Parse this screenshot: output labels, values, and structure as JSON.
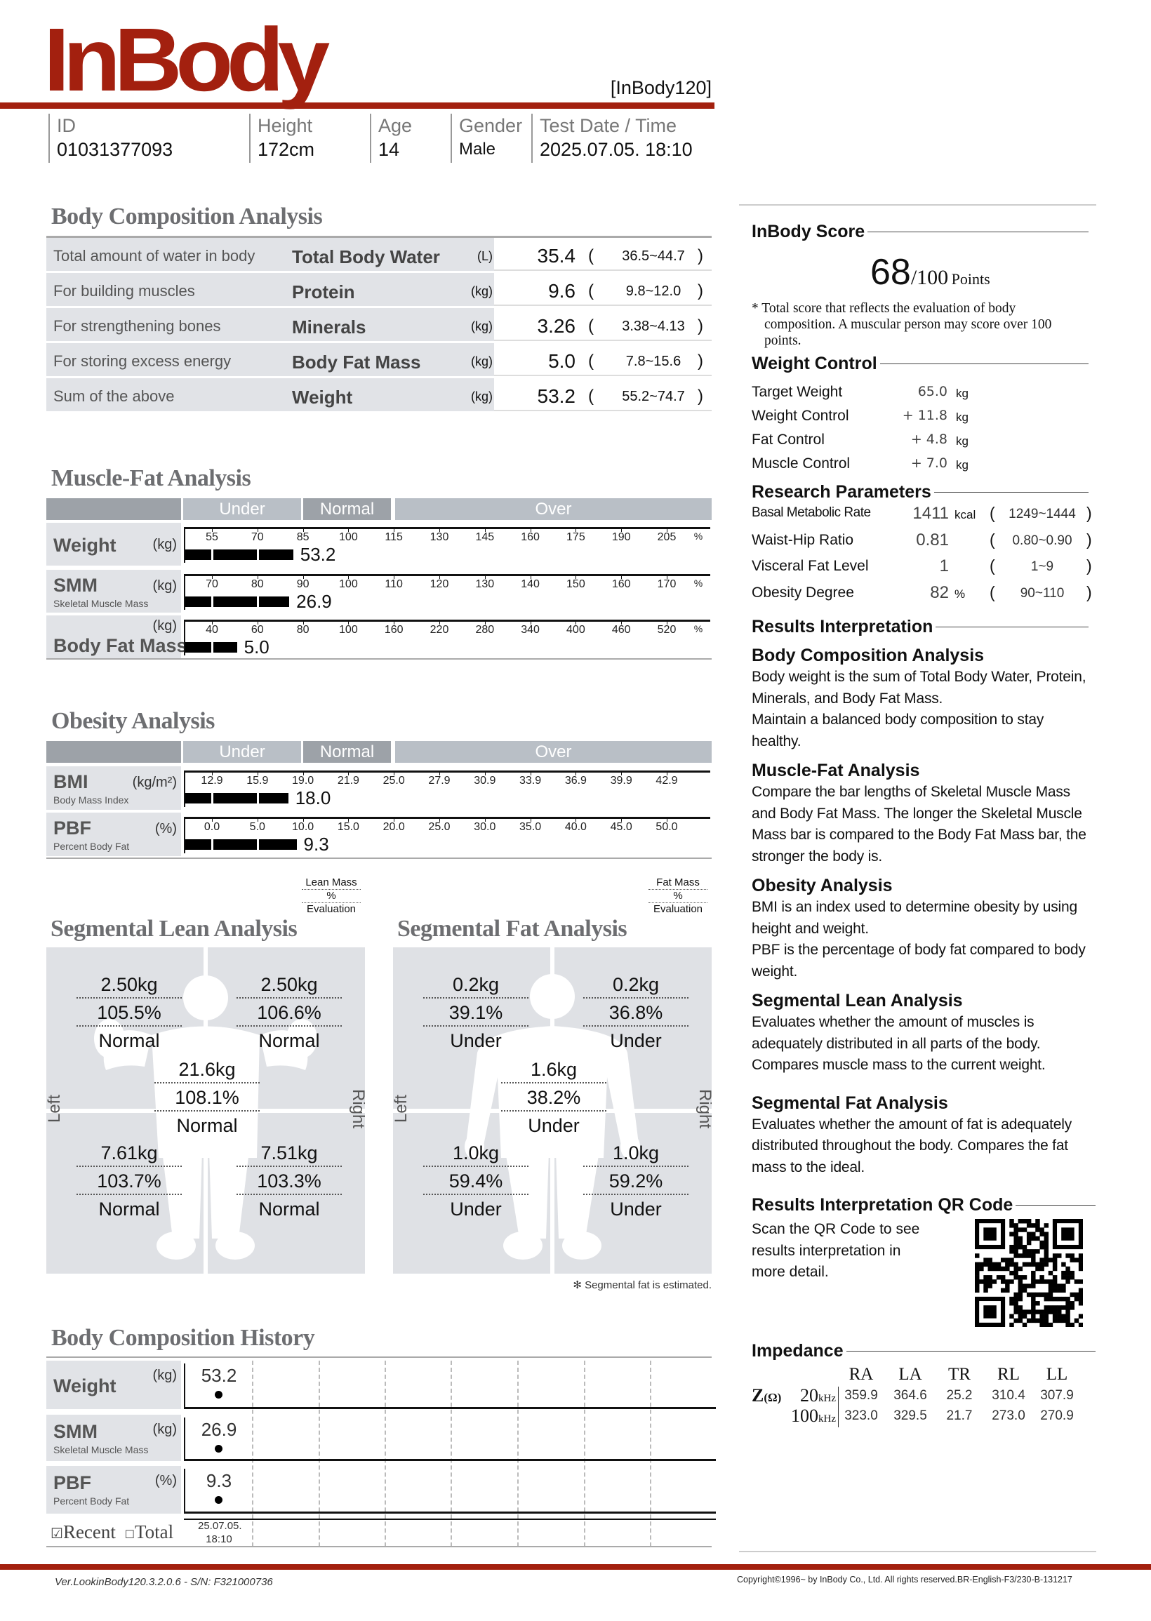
{
  "header": {
    "logo": "InBody",
    "model": "[InBody120]"
  },
  "info": [
    {
      "label": "ID",
      "value": "01031377093"
    },
    {
      "label": "Height",
      "value": "172cm"
    },
    {
      "label": "Age",
      "value": "14"
    },
    {
      "label": "Gender",
      "value": "Male"
    },
    {
      "label": "Test Date / Time",
      "value": "2025.07.05. 18:10"
    }
  ],
  "bca": {
    "title": "Body Composition Analysis",
    "rows": [
      {
        "desc": "Total amount of water in body",
        "name": "Total Body Water",
        "unit": "(L)",
        "value": "35.4",
        "range": "36.5~44.7"
      },
      {
        "desc": "For building muscles",
        "name": "Protein",
        "unit": "(kg)",
        "value": "9.6",
        "range": "9.8~12.0"
      },
      {
        "desc": "For strengthening bones",
        "name": "Minerals",
        "unit": "(kg)",
        "value": "3.26",
        "range": "3.38~4.13"
      },
      {
        "desc": "For storing excess energy",
        "name": "Body Fat Mass",
        "unit": "(kg)",
        "value": "5.0",
        "range": "7.8~15.6"
      },
      {
        "desc": "Sum of the above",
        "name": "Weight",
        "unit": "(kg)",
        "value": "53.2",
        "range": "55.2~74.7"
      }
    ],
    "open": "(",
    "close": ")"
  },
  "bands": {
    "under": "Under",
    "normal": "Normal",
    "over": "Over"
  },
  "mfa": {
    "title": "Muscle-Fat Analysis",
    "rows": [
      {
        "name": "Weight",
        "sub": "",
        "unit": "(kg)",
        "value": "53.2",
        "level_percent": 81.8,
        "ticks": [
          55,
          70,
          85,
          100,
          115,
          130,
          145,
          160,
          175,
          190,
          205
        ],
        "pct": "%"
      },
      {
        "name": "SMM",
        "sub": "Skeletal Muscle Mass",
        "unit": "(kg)",
        "value": "26.9",
        "level_percent": 87,
        "ticks": [
          70,
          80,
          90,
          100,
          110,
          120,
          130,
          140,
          150,
          160,
          170
        ],
        "pct": "%"
      },
      {
        "name": "Body Fat Mass",
        "sub": "",
        "unit": "(kg)",
        "value": "5.0",
        "level_percent": 51,
        "ticks": [
          40,
          60,
          80,
          100,
          160,
          220,
          280,
          340,
          400,
          460,
          520
        ],
        "pct": "%"
      }
    ]
  },
  "oa": {
    "title": "Obesity Analysis",
    "rows": [
      {
        "name": "BMI",
        "sub": "Body Mass Index",
        "unit": "(kg/m²)",
        "value": "18.0",
        "level": 18.0,
        "ticks": [
          "12.9",
          "15.9",
          "19.0",
          "21.9",
          "25.0",
          "27.9",
          "30.9",
          "33.9",
          "36.9",
          "39.9",
          "42.9"
        ],
        "pct": ""
      },
      {
        "name": "PBF",
        "sub": "Percent Body Fat",
        "unit": "(%)",
        "value": "9.3",
        "level": 9.3,
        "ticks": [
          "0.0",
          "5.0",
          "10.0",
          "15.0",
          "20.0",
          "25.0",
          "30.0",
          "35.0",
          "40.0",
          "45.0",
          "50.0"
        ],
        "pct": ""
      }
    ]
  },
  "seg_lean": {
    "title": "Segmental Lean Analysis",
    "legend": [
      "Lean Mass",
      "%",
      "Evaluation"
    ],
    "left": "Left",
    "right": "Right",
    "la": [
      "2.50kg",
      "105.5%",
      "Normal"
    ],
    "ra": [
      "2.50kg",
      "106.6%",
      "Normal"
    ],
    "tr": [
      "21.6kg",
      "108.1%",
      "Normal"
    ],
    "ll": [
      "7.61kg",
      "103.7%",
      "Normal"
    ],
    "rl": [
      "7.51kg",
      "103.3%",
      "Normal"
    ]
  },
  "seg_fat": {
    "title": "Segmental Fat Analysis",
    "legend": [
      "Fat Mass",
      "%",
      "Evaluation"
    ],
    "left": "Left",
    "right": "Right",
    "la": [
      "0.2kg",
      "39.1%",
      "Under"
    ],
    "ra": [
      "0.2kg",
      "36.8%",
      "Under"
    ],
    "tr": [
      "1.6kg",
      "38.2%",
      "Under"
    ],
    "ll": [
      "1.0kg",
      "59.4%",
      "Under"
    ],
    "rl": [
      "1.0kg",
      "59.2%",
      "Under"
    ],
    "note": "✻ Segmental fat is estimated."
  },
  "history": {
    "title": "Body Composition History",
    "rows": [
      {
        "name": "Weight",
        "sub": "",
        "unit": "(kg)",
        "value": "53.2"
      },
      {
        "name": "SMM",
        "sub": "Skeletal Muscle Mass",
        "unit": "(kg)",
        "value": "26.9"
      },
      {
        "name": "PBF",
        "sub": "Percent Body Fat",
        "unit": "(%)",
        "value": "9.3"
      }
    ],
    "recent": "Recent",
    "total": "Total",
    "recent_checked": true,
    "total_checked": false,
    "date": "25.07.05.",
    "time": "18:10"
  },
  "score": {
    "title": "InBody Score",
    "value": "68",
    "max": "/100",
    "unit": "Points",
    "note": "* Total score that reflects the evaluation of body composition. A muscular person may score over 100 points."
  },
  "weight_control": {
    "title": "Weight Control",
    "rows": [
      {
        "label": "Target Weight",
        "value": "65.0",
        "unit": "kg"
      },
      {
        "label": "Weight Control",
        "value": "+ 11.8",
        "unit": "kg"
      },
      {
        "label": "Fat Control",
        "value": "+ 4.8",
        "unit": "kg"
      },
      {
        "label": "Muscle Control",
        "value": "+ 7.0",
        "unit": "kg"
      }
    ]
  },
  "research": {
    "title": "Research Parameters",
    "rows": [
      {
        "label": "Basal Metabolic Rate",
        "value": "1411",
        "unit": "kcal",
        "range": "1249~1444"
      },
      {
        "label": "Waist-Hip Ratio",
        "value": "0.81",
        "unit": "",
        "range": "0.80~0.90"
      },
      {
        "label": "Visceral Fat Level",
        "value": "1",
        "unit": "",
        "range": "1~9"
      },
      {
        "label": "Obesity Degree",
        "value": "82",
        "unit": "%",
        "range": "90~110"
      }
    ]
  },
  "interp": {
    "title": "Results Interpretation",
    "sections": [
      {
        "h": "Body Composition Analysis",
        "p": [
          "Body weight is the sum of Total Body Water, Protein, Minerals, and Body Fat Mass.",
          "Maintain a balanced body composition to stay healthy."
        ]
      },
      {
        "h": "Muscle-Fat Analysis",
        "p": [
          "Compare the bar lengths of Skeletal Muscle Mass and Body Fat Mass. The longer the Skeletal Muscle Mass bar is compared to the Body Fat Mass bar, the stronger the body is."
        ]
      },
      {
        "h": "Obesity Analysis",
        "p": [
          "BMI is an index used to determine obesity by using height and weight.",
          "PBF is the percentage of body fat compared to body weight."
        ]
      },
      {
        "h": "Segmental Lean Analysis",
        "p": [
          "Evaluates whether the amount of muscles is adequately distributed in all parts of the body. Compares muscle mass to the current weight."
        ]
      },
      {
        "h": "Segmental Fat Analysis",
        "p": [
          "Evaluates whether the amount of fat is adequately distributed throughout the body. Compares the fat mass to the ideal."
        ]
      }
    ]
  },
  "qr": {
    "title": "Results Interpretation QR Code",
    "text": "Scan the QR Code to see results interpretation in more detail."
  },
  "impedance": {
    "title": "Impedance",
    "z": "Z",
    "ohm": "(Ω)",
    "cols": [
      "RA",
      "LA",
      "TR",
      "RL",
      "LL"
    ],
    "rows": [
      {
        "freq": "20",
        "unit": "kHz",
        "values": [
          "359.9",
          "364.6",
          "25.2",
          "310.4",
          "307.9"
        ]
      },
      {
        "freq": "100",
        "unit": "kHz",
        "values": [
          "323.0",
          "329.5",
          "21.7",
          "273.0",
          "270.9"
        ]
      }
    ]
  },
  "footer": {
    "version": "Ver.LookinBody120.3.2.0.6 - S/N: F321000736",
    "copyright": "Copyright©1996~ by InBody Co., Ltd. All rights reserved.BR-English-F3/230-B-131217"
  },
  "colors": {
    "brand": "#a3200f",
    "panel": "#e1e3e7",
    "band": "#b9bfc6",
    "band_dark": "#9da2a8"
  }
}
